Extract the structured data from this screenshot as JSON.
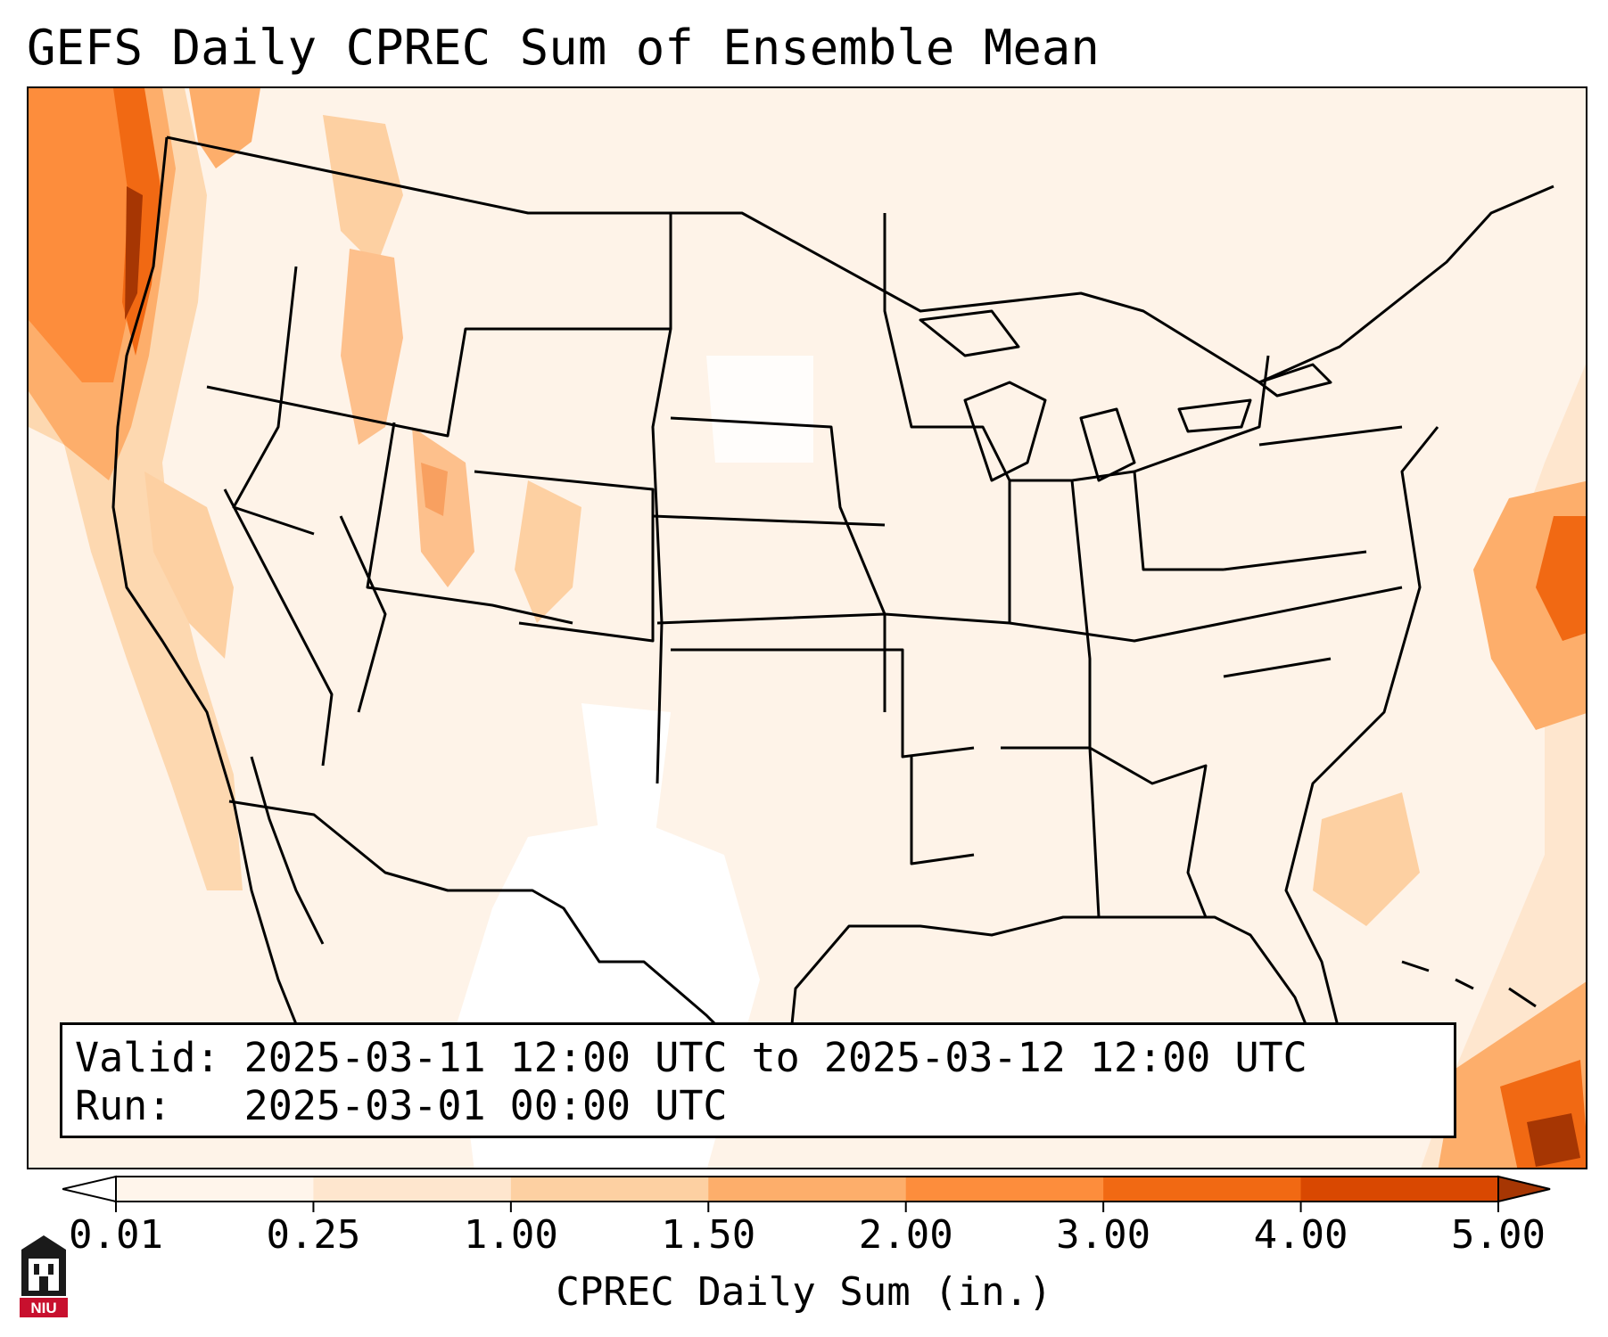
{
  "title": "GEFS Daily CPREC Sum of Ensemble Mean",
  "info": {
    "valid_label": "Valid:",
    "valid_value": "2025-03-11 12:00 UTC to 2025-03-12 12:00 UTC",
    "run_label": "Run:",
    "run_value": "2025-03-01 00:00 UTC"
  },
  "colorbar": {
    "label": "CPREC Daily Sum (in.)",
    "ticks": [
      "0.01",
      "0.25",
      "1.00",
      "1.50",
      "2.00",
      "3.00",
      "4.00",
      "5.00"
    ],
    "colors": [
      "#fff5eb",
      "#fee6ce",
      "#fdd0a2",
      "#fdae6b",
      "#fd8d3c",
      "#f16913",
      "#d94801",
      "#a63603"
    ],
    "under_color": "#ffffff",
    "over_color": "#a63603",
    "extend": "both"
  },
  "logo": {
    "text": "NIU",
    "icon": "niu-seal-icon",
    "colors": {
      "dark": "#1a1a1a",
      "red": "#c8102e"
    }
  }
}
